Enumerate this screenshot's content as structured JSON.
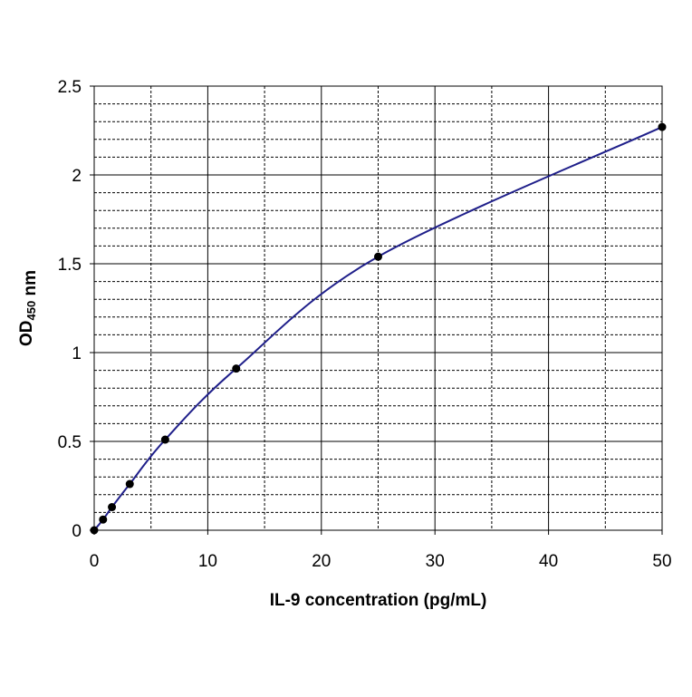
{
  "chart_data": {
    "type": "line",
    "title": "",
    "xlabel": "IL-9 concentration (pg/mL)",
    "ylabel_main": "OD",
    "ylabel_sub": "450",
    "ylabel_unit": "nm",
    "xlim": [
      0,
      50
    ],
    "ylim": [
      0,
      2.5
    ],
    "x_ticks": [
      0,
      10,
      20,
      30,
      40,
      50
    ],
    "x_tick_labels": [
      "0",
      "10",
      "20",
      "30",
      "40",
      "50"
    ],
    "y_ticks": [
      0,
      0.5,
      1,
      1.5,
      2,
      2.5
    ],
    "y_tick_labels": [
      "0",
      "0.5",
      "1",
      "1.5",
      "2",
      "2.5"
    ],
    "grid": true,
    "legend": "none",
    "series": [
      {
        "color": "#1f1f8a",
        "marker_color": "#000000",
        "x": [
          0,
          0.78,
          1.56,
          3.13,
          6.25,
          12.5,
          25,
          50
        ],
        "y": [
          0.0,
          0.06,
          0.13,
          0.26,
          0.51,
          0.91,
          1.54,
          2.27
        ]
      }
    ]
  }
}
